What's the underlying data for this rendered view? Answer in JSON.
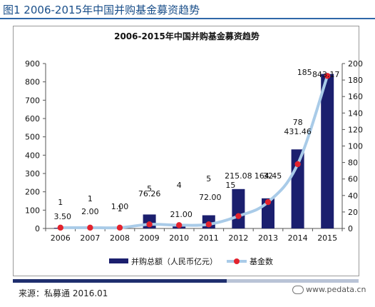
{
  "figure_title": "图1  2006-2015年中国并购基金募资趋势",
  "source_text": "来源：私募通 2016.01",
  "watermark_text": "www.pedata.cn",
  "chart_data": {
    "type": "bar",
    "title": "2006-2015年中国并购基金募资趋势",
    "categories": [
      "2006",
      "2007",
      "2008",
      "2009",
      "2010",
      "2011",
      "2012",
      "2013",
      "2014",
      "2015"
    ],
    "bar_labels": [
      "3.50",
      "2.00",
      "1.00",
      "76.26",
      "21.00",
      "72.00",
      "215.08",
      "164.45",
      "431.46",
      "843.17"
    ],
    "line_labels": [
      "1",
      "1",
      "1",
      "5",
      "4",
      "5",
      "15",
      "32",
      "78",
      "185"
    ],
    "series": [
      {
        "name": "并购总额（人民币亿元）",
        "type": "bar",
        "axis": "left",
        "values": [
          3.5,
          2.0,
          1.0,
          76.26,
          21.0,
          72.0,
          215.08,
          164.45,
          431.46,
          843.17
        ],
        "color": "#1b1f6e"
      },
      {
        "name": "基金数",
        "type": "line",
        "axis": "right",
        "values": [
          1,
          1,
          1,
          5,
          4,
          5,
          15,
          32,
          78,
          185
        ],
        "color": "#a9cbe8",
        "marker_color": "#e3232d"
      }
    ],
    "y_left": {
      "min": 0,
      "max": 900,
      "step": 100,
      "ticks": [
        "0",
        "100",
        "200",
        "300",
        "400",
        "500",
        "600",
        "700",
        "800",
        "900"
      ]
    },
    "y_right": {
      "min": 0,
      "max": 200,
      "step": 20,
      "ticks": [
        "0",
        "20",
        "40",
        "60",
        "80",
        "100",
        "120",
        "140",
        "160",
        "180",
        "200"
      ]
    },
    "grid": false,
    "legend_position": "bottom"
  }
}
